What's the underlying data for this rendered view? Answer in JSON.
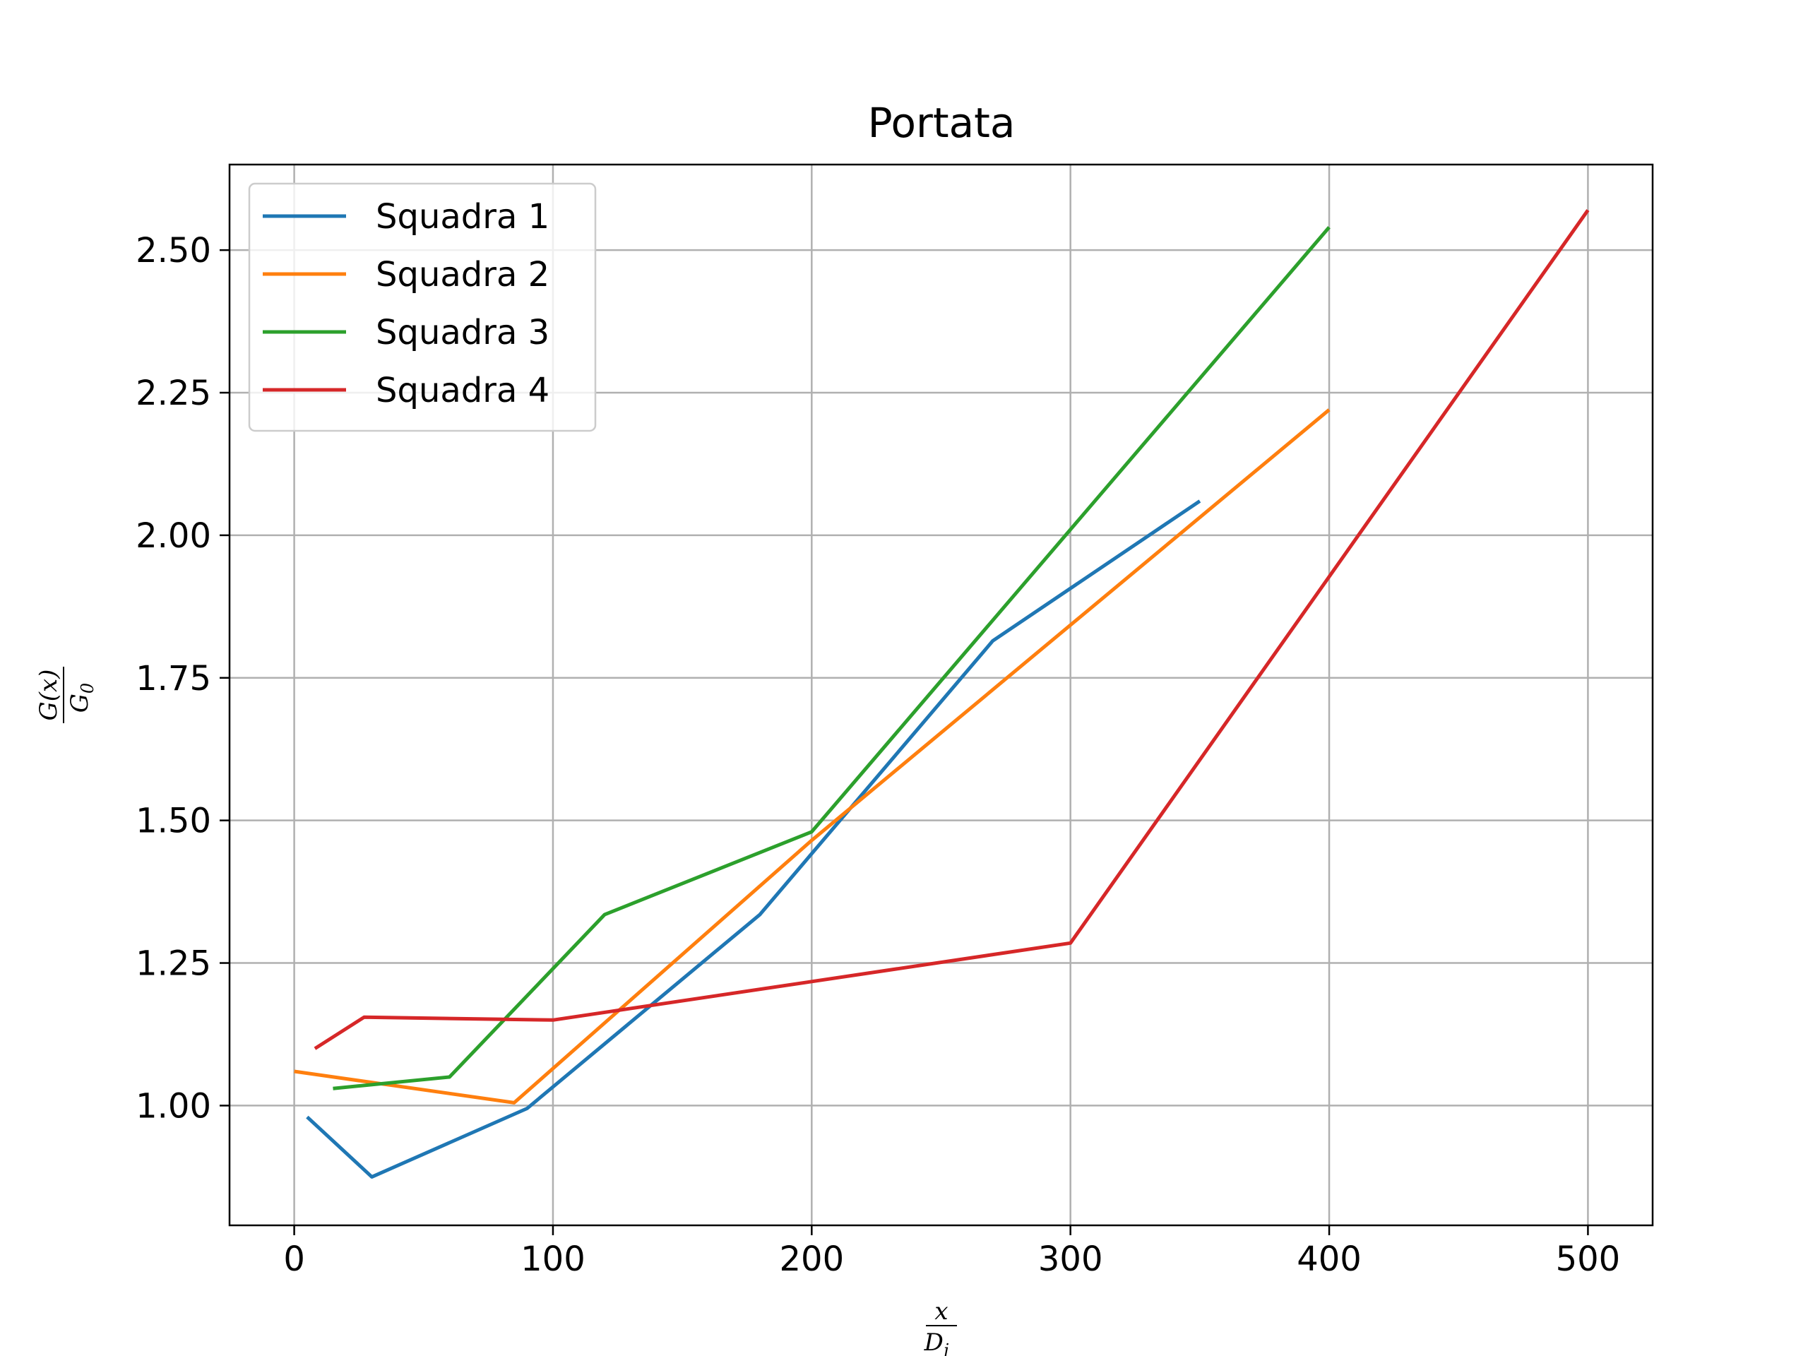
{
  "chart_data": {
    "type": "line",
    "title": "Portata",
    "xlabel": {
      "numerator": "x",
      "denominator": "D",
      "denominator_sub": "j"
    },
    "ylabel": {
      "numerator": "G(x)",
      "denominator": "G",
      "denominator_sub": "0"
    },
    "xlim": [
      -25,
      525
    ],
    "ylim": [
      0.79,
      2.65
    ],
    "xticks": [
      0,
      100,
      200,
      300,
      400,
      500
    ],
    "xtick_labels": [
      "0",
      "100",
      "200",
      "300",
      "400",
      "500"
    ],
    "yticks": [
      1.0,
      1.25,
      1.5,
      1.75,
      2.0,
      2.25,
      2.5
    ],
    "ytick_labels": [
      "1.00",
      "1.25",
      "1.50",
      "1.75",
      "2.00",
      "2.25",
      "2.50"
    ],
    "grid": true,
    "legend_position": "top-left",
    "series": [
      {
        "name": "Squadra 1",
        "color": "#1f77b4",
        "x": [
          5,
          30,
          90,
          180,
          270,
          350
        ],
        "y": [
          0.98,
          0.875,
          0.995,
          1.335,
          1.815,
          2.06
        ]
      },
      {
        "name": "Squadra 2",
        "color": "#ff7f0e",
        "x": [
          0,
          85,
          200,
          400
        ],
        "y": [
          1.06,
          1.005,
          1.465,
          2.22
        ]
      },
      {
        "name": "Squadra 3",
        "color": "#2ca02c",
        "x": [
          15,
          60,
          120,
          200,
          400
        ],
        "y": [
          1.03,
          1.05,
          1.335,
          1.48,
          2.54
        ]
      },
      {
        "name": "Squadra 4",
        "color": "#d62728",
        "x": [
          8,
          27,
          100,
          300,
          500
        ],
        "y": [
          1.1,
          1.155,
          1.15,
          1.285,
          2.57
        ]
      }
    ]
  }
}
